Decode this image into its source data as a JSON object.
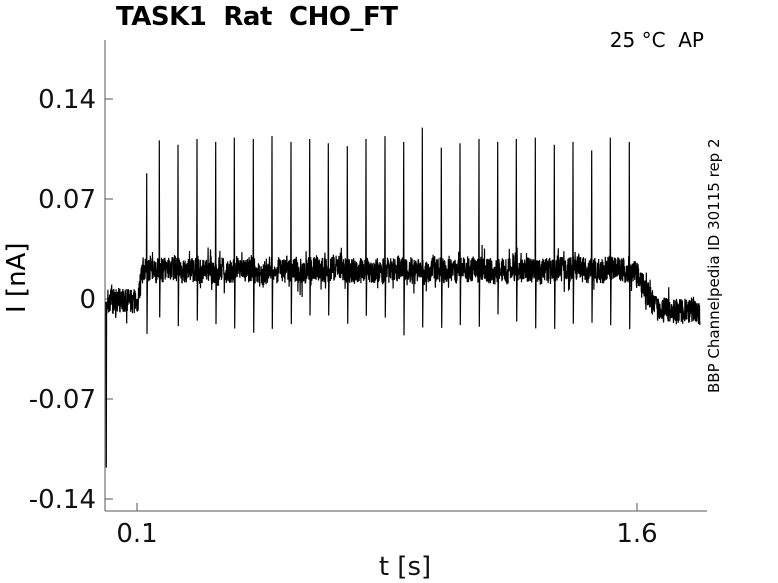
{
  "chart_data": {
    "type": "line",
    "title": "TASK1  Rat  CHO_FT",
    "xlabel": "t [s]",
    "ylabel": "I [nA]",
    "annotations": {
      "top_right": "25 °C  AP",
      "right_side": "BBP Channelpedia ID 30115 rep 2"
    },
    "axis": {
      "xlim": [
        0.004,
        1.81
      ],
      "ylim": [
        -0.148,
        0.148
      ],
      "xticks": [
        {
          "value": 0.1,
          "label": "0.1"
        },
        {
          "value": 1.6,
          "label": "1.6"
        }
      ],
      "yticks": [
        {
          "value": 0.14,
          "label": "0.14"
        },
        {
          "value": 0.07,
          "label": "0.07"
        },
        {
          "value": 0,
          "label": "0"
        },
        {
          "value": -0.07,
          "label": "-0.07"
        },
        {
          "value": -0.14,
          "label": "-0.14"
        }
      ],
      "grid": false
    },
    "line_color": "#000000",
    "background": "#ffffff",
    "trace": {
      "t_start": 0.007,
      "t_end": 1.789,
      "baseline_level": -0.002,
      "baseline_noise": 0.009,
      "step_on": 0.1,
      "ramp_end": 0.118,
      "plateau_level": 0.0205,
      "plateau_noise": 0.009,
      "step_off": 1.595,
      "decay_end": 1.67,
      "tail_level": -0.008,
      "tail_noise": 0.009,
      "initial_transient_peak": -0.118,
      "spike_undershoot": -0.018
    },
    "spikes_t_peak": [
      [
        0.129,
        0.088
      ],
      [
        0.167,
        0.111
      ],
      [
        0.223,
        0.108
      ],
      [
        0.28,
        0.112
      ],
      [
        0.336,
        0.11
      ],
      [
        0.392,
        0.113
      ],
      [
        0.449,
        0.112
      ],
      [
        0.505,
        0.114
      ],
      [
        0.562,
        0.11
      ],
      [
        0.618,
        0.112
      ],
      [
        0.674,
        0.109
      ],
      [
        0.731,
        0.107
      ],
      [
        0.787,
        0.112
      ],
      [
        0.844,
        0.114
      ],
      [
        0.9,
        0.11
      ],
      [
        0.956,
        0.12
      ],
      [
        1.013,
        0.106
      ],
      [
        1.069,
        0.109
      ],
      [
        1.126,
        0.112
      ],
      [
        1.182,
        0.11
      ],
      [
        1.238,
        0.112
      ],
      [
        1.295,
        0.113
      ],
      [
        1.352,
        0.108
      ],
      [
        1.408,
        0.11
      ],
      [
        1.464,
        0.104
      ],
      [
        1.52,
        0.113
      ],
      [
        1.577,
        0.11
      ]
    ]
  }
}
